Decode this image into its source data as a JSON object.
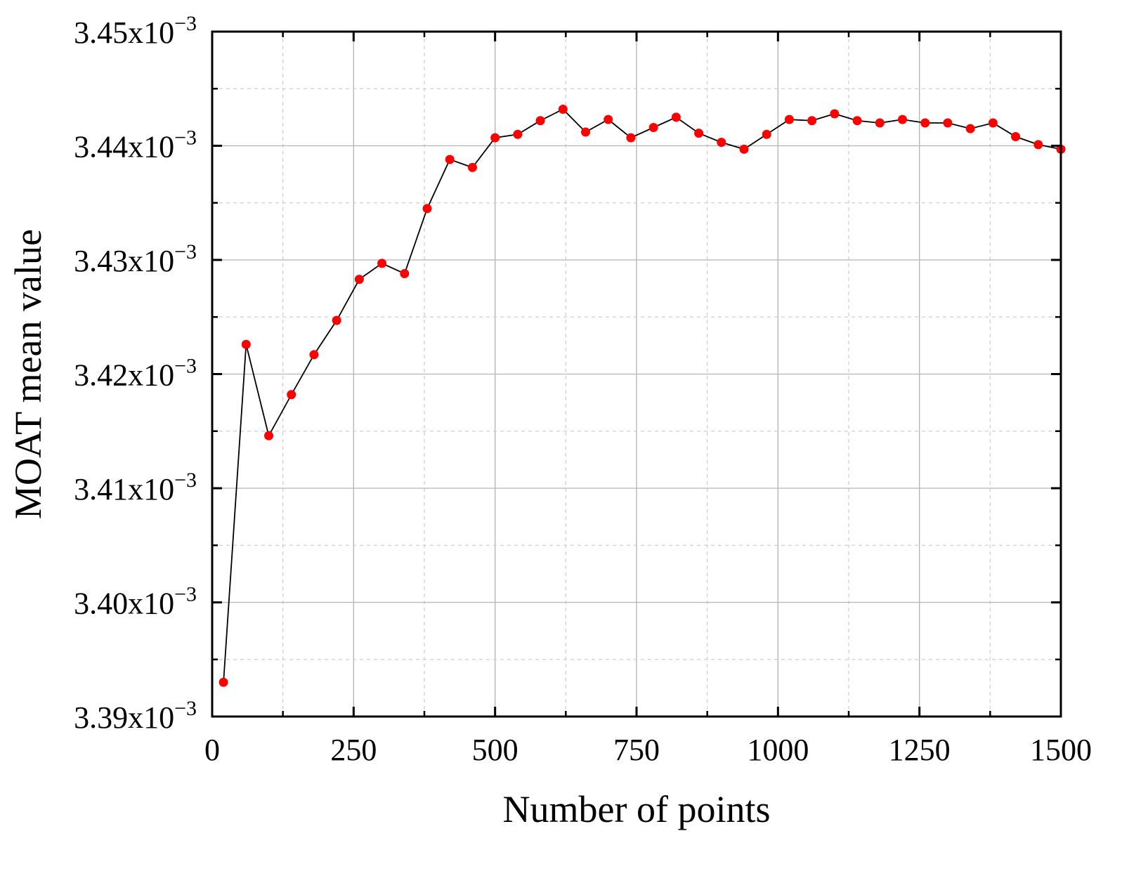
{
  "chart_data": {
    "type": "line",
    "title": "",
    "xlabel": "Number of points",
    "ylabel": "MOAT mean value",
    "xlim": [
      0,
      1500
    ],
    "ylim": [
      0.00339,
      0.00345
    ],
    "x_ticks": [
      0,
      250,
      500,
      750,
      1000,
      1250,
      1500
    ],
    "x_tick_labels": [
      "0",
      "250",
      "500",
      "750",
      "1000",
      "1250",
      "1500"
    ],
    "y_ticks": [
      0.00339,
      0.0034,
      0.00341,
      0.00342,
      0.00343,
      0.00344,
      0.00345
    ],
    "y_tick_labels": [
      {
        "base": "3.39x10",
        "exp": "−3"
      },
      {
        "base": "3.40x10",
        "exp": "−3"
      },
      {
        "base": "3.41x10",
        "exp": "−3"
      },
      {
        "base": "3.42x10",
        "exp": "−3"
      },
      {
        "base": "3.43x10",
        "exp": "−3"
      },
      {
        "base": "3.44x10",
        "exp": "−3"
      },
      {
        "base": "3.45x10",
        "exp": "−3"
      }
    ],
    "grid": true,
    "legend": "none",
    "series": [
      {
        "line_color": "#000000",
        "marker_color": "#ff0000",
        "x": [
          20,
          60,
          100,
          140,
          180,
          220,
          260,
          300,
          340,
          380,
          420,
          460,
          500,
          540,
          580,
          620,
          660,
          700,
          740,
          780,
          820,
          860,
          900,
          940,
          980,
          1020,
          1060,
          1100,
          1140,
          1180,
          1220,
          1260,
          1300,
          1340,
          1380,
          1420,
          1460,
          1500
        ],
        "y": [
          0.003393,
          0.0034226,
          0.0034146,
          0.0034182,
          0.0034217,
          0.0034247,
          0.0034283,
          0.0034297,
          0.0034288,
          0.0034345,
          0.0034388,
          0.0034381,
          0.0034407,
          0.003441,
          0.0034422,
          0.0034432,
          0.0034412,
          0.0034423,
          0.0034407,
          0.0034416,
          0.0034425,
          0.0034411,
          0.0034403,
          0.0034397,
          0.003441,
          0.0034423,
          0.0034422,
          0.0034428,
          0.0034422,
          0.003442,
          0.0034423,
          0.003442,
          0.003442,
          0.0034415,
          0.003442,
          0.0034408,
          0.0034401,
          0.0034397
        ]
      }
    ]
  }
}
